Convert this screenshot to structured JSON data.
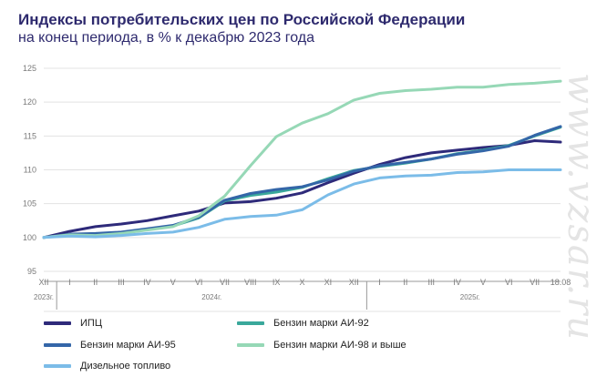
{
  "title": "Индексы потребительских цен по Российской Федерации",
  "subtitle": "на конец периода, в % к декабрю 2023 года",
  "watermark": "www.vzsar.ru",
  "colors": {
    "cpi": "#2e2a7a",
    "ai92": "#3aa89b",
    "ai95": "#3466a8",
    "ai98": "#96d8b6",
    "diesel": "#7bbce8",
    "grid": "#e3e3e3",
    "axis": "#9a9a9a"
  },
  "chart_data": {
    "type": "line",
    "title": "Индексы потребительских цен по Российской Федерации",
    "subtitle": "на конец периода, в % к декабрю 2023 года",
    "ylim": [
      95,
      125
    ],
    "y_ticks": [
      95,
      100,
      105,
      110,
      115,
      120,
      125
    ],
    "grid": true,
    "legend_position": "bottom",
    "x": [
      "XII",
      "I",
      "II",
      "III",
      "IV",
      "V",
      "VI",
      "VII",
      "VIII",
      "IX",
      "X",
      "XI",
      "XII",
      "I",
      "II",
      "III",
      "IV",
      "V",
      "VI",
      "VII",
      "18.08"
    ],
    "year_labels": [
      {
        "label": "2023г.",
        "index": 0
      },
      {
        "label": "2024г.",
        "index": 6.5
      },
      {
        "label": "2025г.",
        "index": 16.5
      }
    ],
    "series": [
      {
        "name": "ИПЦ",
        "color_key": "cpi",
        "values": [
          100,
          100.9,
          101.6,
          102.0,
          102.5,
          103.2,
          103.9,
          105.1,
          105.3,
          105.8,
          106.6,
          108.1,
          109.5,
          110.8,
          111.8,
          112.5,
          112.9,
          113.3,
          113.6,
          114.3,
          114.1
        ]
      },
      {
        "name": "Бензин марки АИ-92",
        "color_key": "ai92",
        "values": [
          100,
          100.4,
          100.4,
          100.6,
          101.2,
          101.7,
          102.9,
          105.4,
          106.2,
          106.7,
          107.4,
          108.7,
          109.9,
          110.5,
          111.0,
          111.6,
          112.4,
          112.9,
          113.6,
          115.0,
          116.3
        ]
      },
      {
        "name": "Бензин марки АИ-95",
        "color_key": "ai95",
        "values": [
          100,
          100.5,
          100.6,
          100.8,
          101.3,
          101.8,
          103.0,
          105.5,
          106.5,
          107.1,
          107.5,
          108.5,
          109.8,
          110.6,
          111.1,
          111.6,
          112.3,
          112.8,
          113.5,
          115.1,
          116.4
        ]
      },
      {
        "name": "Бензин марки АИ-98 и выше",
        "color_key": "ai98",
        "values": [
          100,
          100.4,
          100.3,
          100.6,
          101.1,
          101.6,
          103.2,
          106.1,
          110.6,
          114.9,
          116.9,
          118.3,
          120.3,
          121.3,
          121.7,
          121.9,
          122.2,
          122.2,
          122.6,
          122.8,
          123.1
        ]
      },
      {
        "name": "Дизельное топливо",
        "color_key": "diesel",
        "values": [
          100,
          100.2,
          100.1,
          100.3,
          100.6,
          100.8,
          101.5,
          102.7,
          103.1,
          103.3,
          104.1,
          106.3,
          107.9,
          108.8,
          109.1,
          109.2,
          109.6,
          109.7,
          110.0,
          110.0,
          110.0
        ]
      }
    ]
  }
}
